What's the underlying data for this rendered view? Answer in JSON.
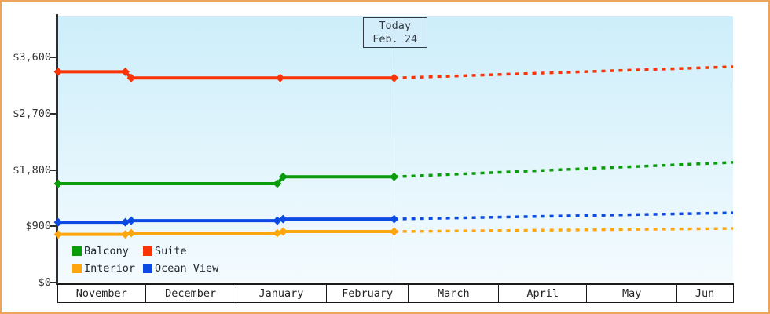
{
  "page": {
    "background": "#ffffff",
    "border_color": "#eba55c"
  },
  "chart_data": {
    "type": "line",
    "title": "",
    "description": "Cruise cabin price history by category; solid lines are observed prices, dotted lines are projected prices after today",
    "plot": {
      "bg_gradient_top": "#cdeefa",
      "bg_gradient_bottom": "#f4fbfe",
      "axis_color": "#2d2d2d",
      "label_color": "#333333",
      "grid": "off",
      "legend_position": "bottom-left"
    },
    "y_axis": {
      "tick_values": [
        0,
        900,
        1800,
        2700,
        3600
      ],
      "tick_labels": [
        "$0",
        "$900",
        "$1,800",
        "$2,700",
        "$3,600"
      ],
      "top_value": 4250
    },
    "x_axis": {
      "month_labels": [
        "November",
        "December",
        "January",
        "February",
        "March",
        "April",
        "May",
        "Jun"
      ],
      "month_days": [
        30,
        31,
        31,
        28,
        31,
        30,
        31,
        19
      ],
      "border_color": "#1a1a1a"
    },
    "today": {
      "line1": "Today",
      "line2": "Feb. 24",
      "day": 115,
      "line_color": "#36404a",
      "box_fill": "#d3eefa",
      "box_border": "#2f3a44"
    },
    "series": [
      {
        "name": "Suite",
        "color": "#fb3408",
        "solid_points_day_price": [
          [
            0,
            3370
          ],
          [
            23,
            3370
          ],
          [
            25,
            3270
          ],
          [
            76,
            3270
          ],
          [
            115,
            3270
          ]
        ],
        "projected_points_day_price": [
          [
            115,
            3270
          ],
          [
            231,
            3450
          ]
        ]
      },
      {
        "name": "Balcony",
        "color": "#0a9c0a",
        "solid_points_day_price": [
          [
            0,
            1580
          ],
          [
            75,
            1580
          ],
          [
            77,
            1690
          ],
          [
            115,
            1690
          ]
        ],
        "projected_points_day_price": [
          [
            115,
            1690
          ],
          [
            231,
            1920
          ]
        ]
      },
      {
        "name": "Ocean View",
        "color": "#0b4be4",
        "solid_points_day_price": [
          [
            0,
            965
          ],
          [
            23,
            965
          ],
          [
            25,
            990
          ],
          [
            75,
            990
          ],
          [
            77,
            1015
          ],
          [
            115,
            1015
          ]
        ],
        "projected_points_day_price": [
          [
            115,
            1015
          ],
          [
            231,
            1115
          ]
        ]
      },
      {
        "name": "Interior",
        "color": "#ffa60f",
        "solid_points_day_price": [
          [
            0,
            770
          ],
          [
            23,
            770
          ],
          [
            25,
            790
          ],
          [
            75,
            790
          ],
          [
            77,
            815
          ],
          [
            115,
            815
          ]
        ],
        "projected_points_day_price": [
          [
            115,
            815
          ],
          [
            231,
            865
          ]
        ]
      }
    ],
    "legend": [
      {
        "label": "Balcony",
        "color": "#0a9c0a"
      },
      {
        "label": "Suite",
        "color": "#fb3408"
      },
      {
        "label": "Interior",
        "color": "#ffa60f"
      },
      {
        "label": "Ocean View",
        "color": "#0b4be4"
      }
    ]
  }
}
